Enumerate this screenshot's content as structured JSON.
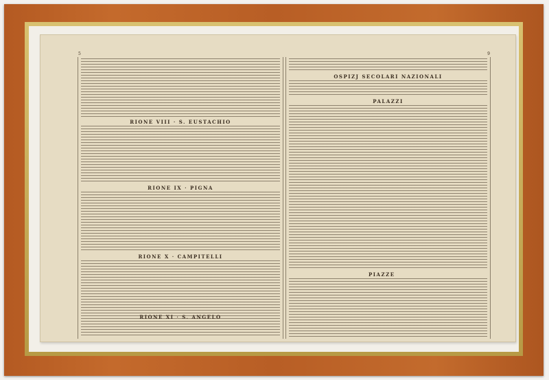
{
  "print": {
    "left_page": {
      "page_number": "5",
      "headings": [
        "RIONE VIII · S. EUSTACHIO",
        "RIONE IX · PIGNA",
        "RIONE X · CAMPITELLI",
        "RIONE XI · S. ANGELO"
      ]
    },
    "right_page": {
      "page_number": "9",
      "headings": [
        "OSPIZJ SECOLARI NAZIONALI",
        "PALAZZI",
        "PIAZZE"
      ]
    }
  },
  "colors": {
    "frame": "#c0662a",
    "gilt": "#c9ad58",
    "paper": "#e6dcc3",
    "ink": "#3a2d20"
  }
}
